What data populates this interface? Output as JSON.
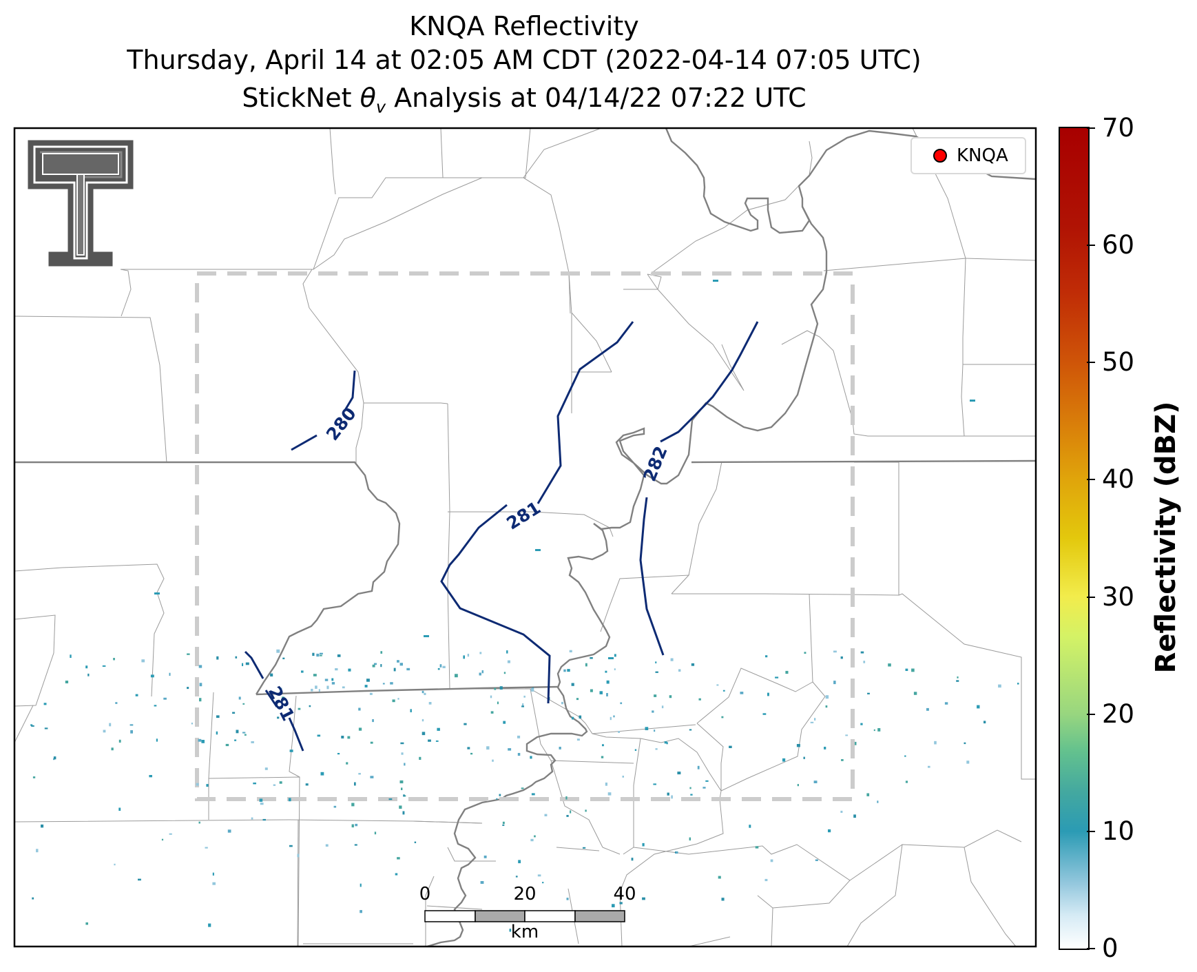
{
  "title": {
    "line1": "KNQA Reflectivity",
    "line2": "Thursday, April 14 at 02:05 AM CDT (2022-04-14 07:05 UTC)",
    "line3": "StickNet θv Analysis at 04/14/22 07:22 UTC"
  },
  "legend": {
    "label": "KNQA",
    "marker_color": "#ff0000"
  },
  "contours": [
    {
      "level": 280,
      "label": "280"
    },
    {
      "level": 281,
      "label": "281"
    },
    {
      "level": 281,
      "label": "281"
    },
    {
      "level": 282,
      "label": "282"
    }
  ],
  "colorbar": {
    "label": "Reflectivity (dBZ)",
    "ticks": [
      "0",
      "10",
      "20",
      "30",
      "40",
      "50",
      "60",
      "70"
    ],
    "min": 0,
    "max": 70
  },
  "scalebar": {
    "ticks": [
      "0",
      "20",
      "40"
    ],
    "unit": "km"
  },
  "colors": {
    "contour": "#0d2a73",
    "border": "#888888",
    "domain_box": "#cccccc",
    "echo": "#2b9bb4"
  },
  "logo": {
    "icon": "texas-tech-double-t-logo"
  }
}
